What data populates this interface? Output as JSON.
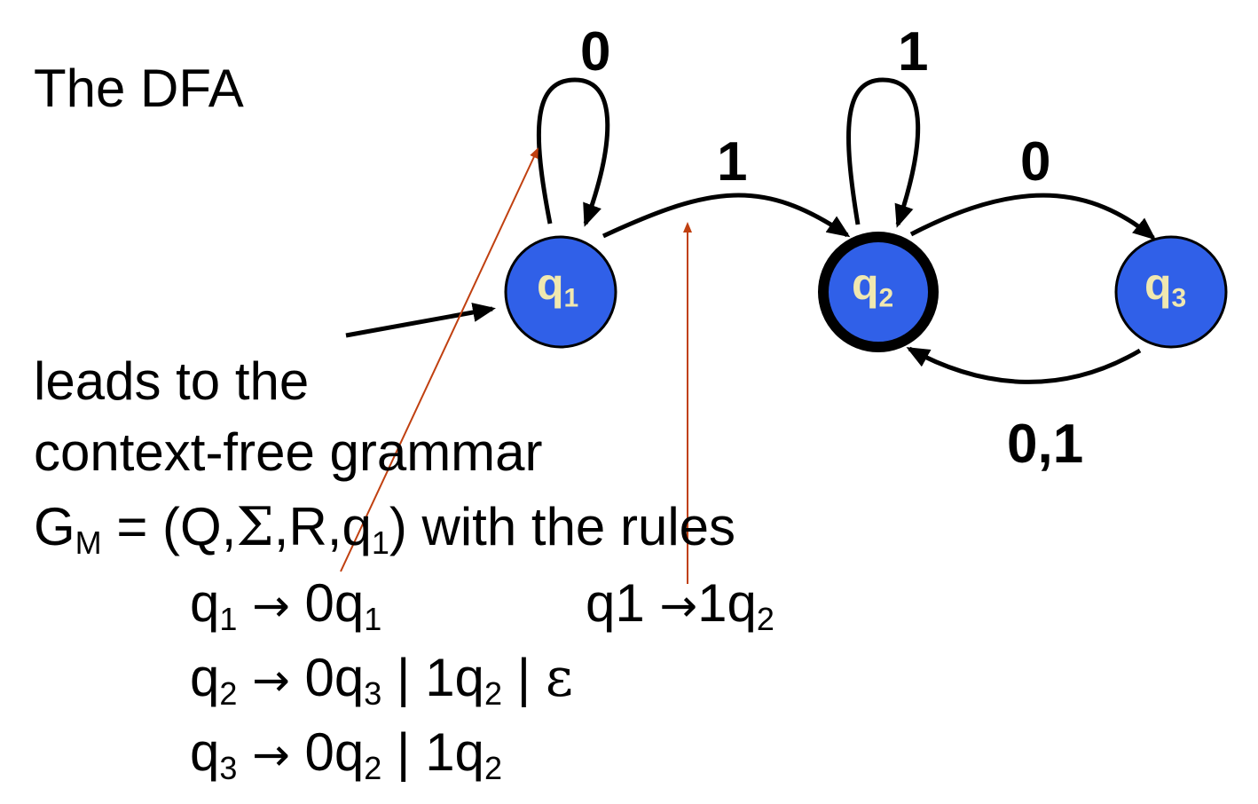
{
  "heading": "The DFA",
  "colors": {
    "state_fill": "#3060e8",
    "state_stroke": "#000000",
    "state_label": "#f0e8b0",
    "annotation_line": "#c04010"
  },
  "states": [
    {
      "id": "q1",
      "base": "q",
      "sub": "1",
      "accepting": false,
      "start": true
    },
    {
      "id": "q2",
      "base": "q",
      "sub": "2",
      "accepting": true,
      "start": false
    },
    {
      "id": "q3",
      "base": "q",
      "sub": "3",
      "accepting": false,
      "start": false
    }
  ],
  "transitions": {
    "q1_self": "0",
    "q1_q2": "1",
    "q2_self": "1",
    "q2_q3": "0",
    "q3_q2": "0,1"
  },
  "text": {
    "leads_to": "leads to the",
    "cfg": "context-free grammar",
    "g_base": "G",
    "g_sub": "M",
    "g_eq": " = (Q,",
    "g_sigma": "Σ",
    "g_mid": ",R,q",
    "g_sub1": "1",
    "g_tail": ") with the rules"
  },
  "rules": {
    "r1": {
      "lhs": "q",
      "lhs_sub": "1",
      "arrow": "→",
      "rhs_a": "0q",
      "rhs_a_sub": "1"
    },
    "r1b": {
      "lhs": "q1",
      "arrow": "→",
      "rhs": "1q",
      "rhs_sub": "2"
    },
    "r2": {
      "lhs": "q",
      "lhs_sub": "2",
      "arrow": "→",
      "p1": "0q",
      "p1_sub": "3",
      "sep1": " | 1q",
      "p2_sub": "2",
      "sep2": " | ",
      "eps": "ε"
    },
    "r3": {
      "lhs": "q",
      "lhs_sub": "3",
      "arrow": "→",
      "p1": "0q",
      "p1_sub": "2",
      "sep1": " | 1q",
      "p2_sub": "2"
    }
  }
}
